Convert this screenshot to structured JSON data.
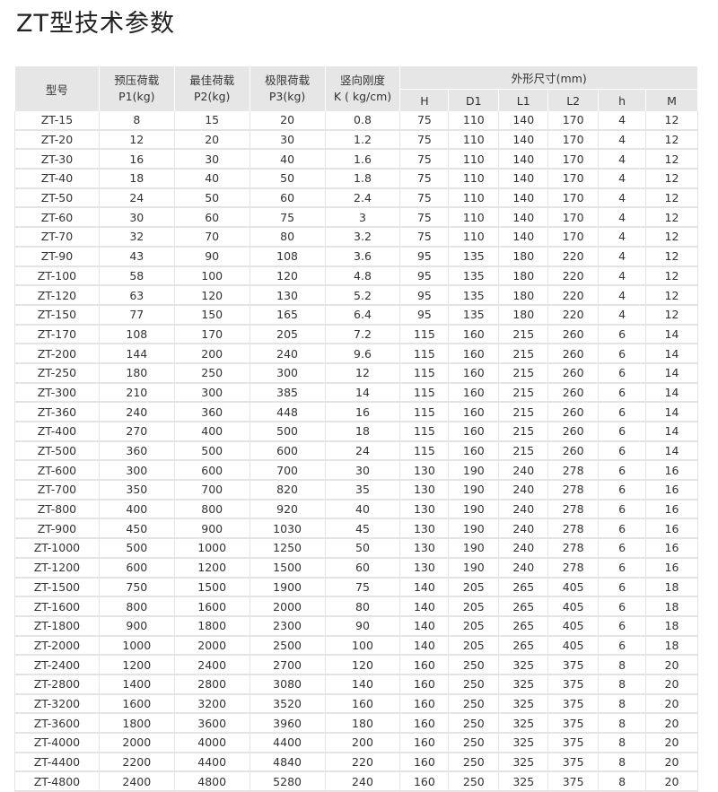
{
  "title": "ZT型技术参数",
  "table": {
    "headers": {
      "model": "型号",
      "p1_line1": "预压荷载",
      "p1_line2": "P1(kg)",
      "p2_line1": "最佳荷载",
      "p2_line2": "P2(kg)",
      "p3_line1": "极限荷载",
      "p3_line2": "P3(kg)",
      "k_line1": "竖向刚度",
      "k_line2": "K ( kg/cm)",
      "dims": "外形尺寸(mm)",
      "dim_cols": [
        "H",
        "D1",
        "L1",
        "L2",
        "h",
        "M"
      ]
    },
    "rows": [
      [
        "ZT-15",
        "8",
        "15",
        "20",
        "0.8",
        "75",
        "110",
        "140",
        "170",
        "4",
        "12"
      ],
      [
        "ZT-20",
        "12",
        "20",
        "30",
        "1.2",
        "75",
        "110",
        "140",
        "170",
        "4",
        "12"
      ],
      [
        "ZT-30",
        "16",
        "30",
        "40",
        "1.6",
        "75",
        "110",
        "140",
        "170",
        "4",
        "12"
      ],
      [
        "ZT-40",
        "18",
        "40",
        "50",
        "1.8",
        "75",
        "110",
        "140",
        "170",
        "4",
        "12"
      ],
      [
        "ZT-50",
        "24",
        "50",
        "60",
        "2.4",
        "75",
        "110",
        "140",
        "170",
        "4",
        "12"
      ],
      [
        "ZT-60",
        "30",
        "60",
        "75",
        "3",
        "75",
        "110",
        "140",
        "170",
        "4",
        "12"
      ],
      [
        "ZT-70",
        "32",
        "70",
        "80",
        "3.2",
        "75",
        "110",
        "140",
        "170",
        "4",
        "12"
      ],
      [
        "ZT-90",
        "43",
        "90",
        "108",
        "3.6",
        "95",
        "135",
        "180",
        "220",
        "4",
        "12"
      ],
      [
        "ZT-100",
        "58",
        "100",
        "120",
        "4.8",
        "95",
        "135",
        "180",
        "220",
        "4",
        "12"
      ],
      [
        "ZT-120",
        "63",
        "120",
        "130",
        "5.2",
        "95",
        "135",
        "180",
        "220",
        "4",
        "12"
      ],
      [
        "ZT-150",
        "77",
        "150",
        "165",
        "6.4",
        "95",
        "135",
        "180",
        "220",
        "4",
        "12"
      ],
      [
        "ZT-170",
        "108",
        "170",
        "205",
        "7.2",
        "115",
        "160",
        "215",
        "260",
        "6",
        "14"
      ],
      [
        "ZT-200",
        "144",
        "200",
        "240",
        "9.6",
        "115",
        "160",
        "215",
        "260",
        "6",
        "14"
      ],
      [
        "ZT-250",
        "180",
        "250",
        "300",
        "12",
        "115",
        "160",
        "215",
        "260",
        "6",
        "14"
      ],
      [
        "ZT-300",
        "210",
        "300",
        "385",
        "14",
        "115",
        "160",
        "215",
        "260",
        "6",
        "14"
      ],
      [
        "ZT-360",
        "240",
        "360",
        "448",
        "16",
        "115",
        "160",
        "215",
        "260",
        "6",
        "14"
      ],
      [
        "ZT-400",
        "270",
        "400",
        "500",
        "18",
        "115",
        "160",
        "215",
        "260",
        "6",
        "14"
      ],
      [
        "ZT-500",
        "360",
        "500",
        "600",
        "24",
        "115",
        "160",
        "215",
        "260",
        "6",
        "14"
      ],
      [
        "ZT-600",
        "300",
        "600",
        "700",
        "30",
        "130",
        "190",
        "240",
        "278",
        "6",
        "16"
      ],
      [
        "ZT-700",
        "350",
        "700",
        "820",
        "35",
        "130",
        "190",
        "240",
        "278",
        "6",
        "16"
      ],
      [
        "ZT-800",
        "400",
        "800",
        "920",
        "40",
        "130",
        "190",
        "240",
        "278",
        "6",
        "16"
      ],
      [
        "ZT-900",
        "450",
        "900",
        "1030",
        "45",
        "130",
        "190",
        "240",
        "278",
        "6",
        "16"
      ],
      [
        "ZT-1000",
        "500",
        "1000",
        "1250",
        "50",
        "130",
        "190",
        "240",
        "278",
        "6",
        "16"
      ],
      [
        "ZT-1200",
        "600",
        "1200",
        "1500",
        "60",
        "130",
        "190",
        "240",
        "278",
        "6",
        "16"
      ],
      [
        "ZT-1500",
        "750",
        "1500",
        "1900",
        "75",
        "140",
        "205",
        "265",
        "405",
        "6",
        "18"
      ],
      [
        "ZT-1600",
        "800",
        "1600",
        "2000",
        "80",
        "140",
        "205",
        "265",
        "405",
        "6",
        "18"
      ],
      [
        "ZT-1800",
        "900",
        "1800",
        "2300",
        "90",
        "140",
        "205",
        "265",
        "405",
        "6",
        "18"
      ],
      [
        "ZT-2000",
        "1000",
        "2000",
        "2500",
        "100",
        "140",
        "205",
        "265",
        "405",
        "6",
        "18"
      ],
      [
        "ZT-2400",
        "1200",
        "2400",
        "2700",
        "120",
        "160",
        "250",
        "325",
        "375",
        "8",
        "20"
      ],
      [
        "ZT-2800",
        "1400",
        "2800",
        "3080",
        "140",
        "160",
        "250",
        "325",
        "375",
        "8",
        "20"
      ],
      [
        "ZT-3200",
        "1600",
        "3200",
        "3520",
        "160",
        "160",
        "250",
        "325",
        "375",
        "8",
        "20"
      ],
      [
        "ZT-3600",
        "1800",
        "3600",
        "3960",
        "180",
        "160",
        "250",
        "325",
        "375",
        "8",
        "20"
      ],
      [
        "ZT-4000",
        "2000",
        "4000",
        "4400",
        "200",
        "160",
        "250",
        "325",
        "375",
        "8",
        "20"
      ],
      [
        "ZT-4400",
        "2200",
        "4400",
        "4840",
        "220",
        "160",
        "250",
        "325",
        "375",
        "8",
        "20"
      ],
      [
        "ZT-4800",
        "2400",
        "4800",
        "5280",
        "240",
        "160",
        "250",
        "325",
        "375",
        "8",
        "20"
      ]
    ]
  }
}
